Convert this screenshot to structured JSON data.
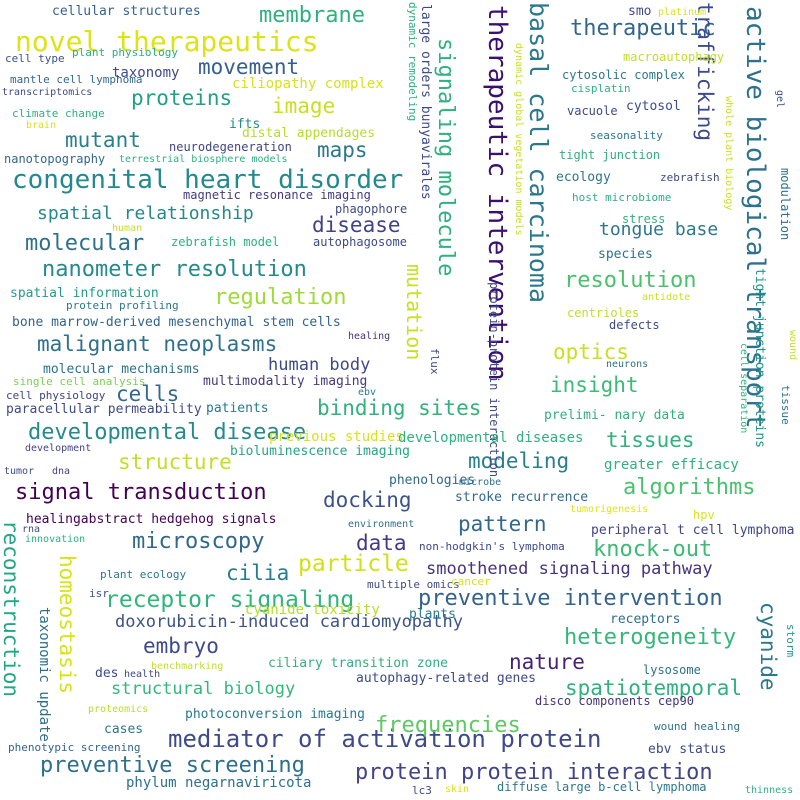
{
  "words": [
    {
      "text": "congenital heart disorder",
      "color": "#23898e"
    },
    {
      "text": "novel therapeutics",
      "color": "#dde318"
    },
    {
      "text": "therapeutic intervention",
      "color": "#3b0f70"
    },
    {
      "text": "basal cell carcinoma",
      "color": "#2a788e"
    },
    {
      "text": "active biological transport",
      "color": "#2c728e"
    },
    {
      "text": "signaling molecule",
      "color": "#2db27d"
    },
    {
      "text": "mediator of activation protein",
      "color": "#3e4a89"
    },
    {
      "text": "preventive intervention",
      "color": "#33638d"
    },
    {
      "text": "protein protein interaction",
      "color": "#414487"
    },
    {
      "text": "preventive screening",
      "color": "#2d708e"
    },
    {
      "text": "signal transduction",
      "color": "#440154"
    },
    {
      "text": "receptor signaling",
      "color": "#2fb47c"
    },
    {
      "text": "developmental disease",
      "color": "#238a8d"
    },
    {
      "text": "malignant neoplasms",
      "color": "#2c718e"
    },
    {
      "text": "nanometer resolution",
      "color": "#238a8d"
    },
    {
      "text": "binding sites",
      "color": "#2eb37c"
    },
    {
      "text": "reconstruction",
      "color": "#22a785"
    },
    {
      "text": "homeostasis",
      "color": "#d8e219"
    },
    {
      "text": "membrane",
      "color": "#2db27d"
    },
    {
      "text": "therapeutic",
      "color": "#31668e"
    },
    {
      "text": "molecular",
      "color": "#2c728e"
    },
    {
      "text": "regulation",
      "color": "#a0da39"
    },
    {
      "text": "resolution",
      "color": "#4ac16d"
    },
    {
      "text": "algorithms",
      "color": "#4ac16d"
    },
    {
      "text": "knock-out",
      "color": "#3bbb75"
    },
    {
      "text": "heterogeneity",
      "color": "#35b779"
    },
    {
      "text": "microscopy",
      "color": "#31688e"
    },
    {
      "text": "frequencies",
      "color": "#5ec962"
    },
    {
      "text": "spatiotemporal",
      "color": "#2db27d"
    },
    {
      "text": "modeling",
      "color": "#277f8e"
    },
    {
      "text": "structure",
      "color": "#c2df23"
    },
    {
      "text": "particle",
      "color": "#d0e11c"
    },
    {
      "text": "pattern",
      "color": "#31688e"
    },
    {
      "text": "docking",
      "color": "#3b528b"
    },
    {
      "text": "mutation",
      "color": "#c8e020"
    },
    {
      "text": "smoothened signaling pathway",
      "color": "#46327e"
    },
    {
      "text": "doxorubicin-induced cardiomyopathy",
      "color": "#3b528b"
    },
    {
      "text": "structural biology",
      "color": "#35b779"
    },
    {
      "text": "mutant",
      "color": "#27808e"
    },
    {
      "text": "proteins",
      "color": "#1fa187"
    },
    {
      "text": "movement",
      "color": "#355f8d"
    },
    {
      "text": "image",
      "color": "#c8e020"
    },
    {
      "text": "maps",
      "color": "#2a788e"
    },
    {
      "text": "disease",
      "color": "#404387"
    },
    {
      "text": "spatial relationship",
      "color": "#23898e"
    },
    {
      "text": "optics",
      "color": "#c8e020"
    },
    {
      "text": "insight",
      "color": "#3bbb75"
    },
    {
      "text": "tissues",
      "color": "#2db27d"
    },
    {
      "text": "cilia",
      "color": "#287c8e"
    },
    {
      "text": "data",
      "color": "#443983"
    },
    {
      "text": "nature",
      "color": "#482173"
    },
    {
      "text": "embryo",
      "color": "#3e4a89"
    },
    {
      "text": "cells",
      "color": "#31688e"
    },
    {
      "text": "cyanide",
      "color": "#2a788e"
    },
    {
      "text": "trafficking",
      "color": "#3e4a89"
    },
    {
      "text": "tongue base",
      "color": "#2a788e"
    },
    {
      "text": "human body",
      "color": "#3e4989"
    },
    {
      "text": "ciliopathy complex",
      "color": "#d8e219"
    },
    {
      "text": "previous studies",
      "color": "#d8e219"
    },
    {
      "text": "cyanide toxicity",
      "color": "#b5de2b"
    },
    {
      "text": "ciliary transition zone",
      "color": "#2db27d"
    },
    {
      "text": "photoconversion imaging",
      "color": "#2a788e"
    },
    {
      "text": "phylum negarnaviricota",
      "color": "#2c718e"
    },
    {
      "text": "tight junction proteins",
      "color": "#1f968b"
    },
    {
      "text": "protein-protein interaction",
      "color": "#3f4788"
    },
    {
      "text": "large orders bunyavirales",
      "color": "#3e4a89"
    },
    {
      "text": "taxonomic update",
      "color": "#2d708e"
    },
    {
      "text": "cellular structures",
      "color": "#33638d"
    },
    {
      "text": "plant physiology",
      "color": "#2ab07f"
    },
    {
      "text": "cell type",
      "color": "#3b528b"
    },
    {
      "text": "mantle cell lymphoma",
      "color": "#31688e"
    },
    {
      "text": "transcriptomics",
      "color": "#3e4a89"
    },
    {
      "text": "climate change",
      "color": "#2db27d"
    },
    {
      "text": "brain",
      "color": "#d8e219"
    },
    {
      "text": "taxonomy",
      "color": "#3e4989"
    },
    {
      "text": "ifts",
      "color": "#23898e"
    },
    {
      "text": "distal appendages",
      "color": "#b5de2b"
    },
    {
      "text": "neurodegeneration",
      "color": "#414487"
    },
    {
      "text": "nanotopography",
      "color": "#31688e"
    },
    {
      "text": "terrestrial biosphere models",
      "color": "#2db27d"
    },
    {
      "text": "magnetic resonance imaging",
      "color": "#443983"
    },
    {
      "text": "phagophore",
      "color": "#3e4a89"
    },
    {
      "text": "human",
      "color": "#c8e020"
    },
    {
      "text": "zebrafish model",
      "color": "#2db27d"
    },
    {
      "text": "autophagosome",
      "color": "#3e4a89"
    },
    {
      "text": "spatial information",
      "color": "#1f9e89"
    },
    {
      "text": "protein profiling",
      "color": "#2a788e"
    },
    {
      "text": "bone marrow-derived mesenchymal stem cells",
      "color": "#33638d"
    },
    {
      "text": "healing",
      "color": "#46327e"
    },
    {
      "text": "molecular mechanisms",
      "color": "#2c728e"
    },
    {
      "text": "single cell analysis",
      "color": "#7ad151"
    },
    {
      "text": "cell physiology",
      "color": "#414487"
    },
    {
      "text": "paracellular permeability",
      "color": "#3e4a89"
    },
    {
      "text": "multimodality imaging",
      "color": "#443983"
    },
    {
      "text": "patients",
      "color": "#2a788e"
    },
    {
      "text": "ebv",
      "color": "#287c8e"
    },
    {
      "text": "development",
      "color": "#414487"
    },
    {
      "text": "bioluminescence imaging",
      "color": "#22a785"
    },
    {
      "text": "tumor",
      "color": "#3e4a89"
    },
    {
      "text": "dna",
      "color": "#414487"
    },
    {
      "text": "developmental diseases",
      "color": "#2db27d"
    },
    {
      "text": "phenologies",
      "color": "#31688e"
    },
    {
      "text": "greater efficacy",
      "color": "#2db27d"
    },
    {
      "text": "microbe",
      "color": "#2c718e"
    },
    {
      "text": "stroke recurrence",
      "color": "#31688e"
    },
    {
      "text": "healingabstract hedgehog signals",
      "color": "#440154"
    },
    {
      "text": "rna",
      "color": "#3e4a89"
    },
    {
      "text": "innovation",
      "color": "#2db27d"
    },
    {
      "text": "environment",
      "color": "#2c718e"
    },
    {
      "text": "hpv",
      "color": "#dde318"
    },
    {
      "text": "tumorigenesis",
      "color": "#dde318"
    },
    {
      "text": "peripheral t cell lymphoma",
      "color": "#414487"
    },
    {
      "text": "non-hodgkin's lymphoma",
      "color": "#3e4a89"
    },
    {
      "text": "plant ecology",
      "color": "#2a788e"
    },
    {
      "text": "isr",
      "color": "#3b528b"
    },
    {
      "text": "multiple omics",
      "color": "#3e4a89"
    },
    {
      "text": "cancer",
      "color": "#d8e219"
    },
    {
      "text": "plants",
      "color": "#2a788e"
    },
    {
      "text": "receptors",
      "color": "#2d708e"
    },
    {
      "text": "storm",
      "color": "#1f968b"
    },
    {
      "text": "des",
      "color": "#3e4a89"
    },
    {
      "text": "health",
      "color": "#3e4a89"
    },
    {
      "text": "benchmarking",
      "color": "#c2df23"
    },
    {
      "text": "autophagy-related genes",
      "color": "#3e4a89"
    },
    {
      "text": "lysosome",
      "color": "#2c718e"
    },
    {
      "text": "disco components cep90",
      "color": "#46327e"
    },
    {
      "text": "proteomics",
      "color": "#b5de2b"
    },
    {
      "text": "cases",
      "color": "#2a788e"
    },
    {
      "text": "phenotypic screening",
      "color": "#33638d"
    },
    {
      "text": "wound healing",
      "color": "#2c718e"
    },
    {
      "text": "ebv status",
      "color": "#3e4a89"
    },
    {
      "text": "lc3",
      "color": "#3e4a89"
    },
    {
      "text": "skin",
      "color": "#d8e219"
    },
    {
      "text": "diffuse large b-cell lymphoma",
      "color": "#2a788e"
    },
    {
      "text": "thinness",
      "color": "#2db27d"
    },
    {
      "text": "smo",
      "color": "#3e4a89"
    },
    {
      "text": "platinum",
      "color": "#d8e219"
    },
    {
      "text": "macroautophagy",
      "color": "#c2df23"
    },
    {
      "text": "cytosolic complex",
      "color": "#2a788e"
    },
    {
      "text": "cisplatin",
      "color": "#2db27d"
    },
    {
      "text": "vacuole",
      "color": "#3e4a89"
    },
    {
      "text": "cytosol",
      "color": "#3e4a89"
    },
    {
      "text": "seasonality",
      "color": "#2a788e"
    },
    {
      "text": "tight junction",
      "color": "#2db27d"
    },
    {
      "text": "ecology",
      "color": "#2a788e"
    },
    {
      "text": "host microbiome",
      "color": "#2db27d"
    },
    {
      "text": "zebrafish",
      "color": "#3e4a89"
    },
    {
      "text": "stress",
      "color": "#2db27d"
    },
    {
      "text": "species",
      "color": "#2c718e"
    },
    {
      "text": "centrioles",
      "color": "#c2df23"
    },
    {
      "text": "antidote",
      "color": "#c8e020"
    },
    {
      "text": "defects",
      "color": "#3e4a89"
    },
    {
      "text": "neurons",
      "color": "#2c718e"
    },
    {
      "text": "prelimi- nary data",
      "color": "#2db27d"
    },
    {
      "text": "tissue",
      "color": "#2c718e"
    },
    {
      "text": "modulation",
      "color": "#2c718e"
    },
    {
      "text": "gel",
      "color": "#3e4a89"
    },
    {
      "text": "wound",
      "color": "#c2df23"
    },
    {
      "text": "cell separation",
      "color": "#2db27d"
    },
    {
      "text": "dynamic remodeling",
      "color": "#2db27d"
    },
    {
      "text": "dynamic global vegetation models",
      "color": "#c8e020"
    },
    {
      "text": "whole plant biology",
      "color": "#c8e020"
    },
    {
      "text": "flux",
      "color": "#3e4a89"
    }
  ]
}
